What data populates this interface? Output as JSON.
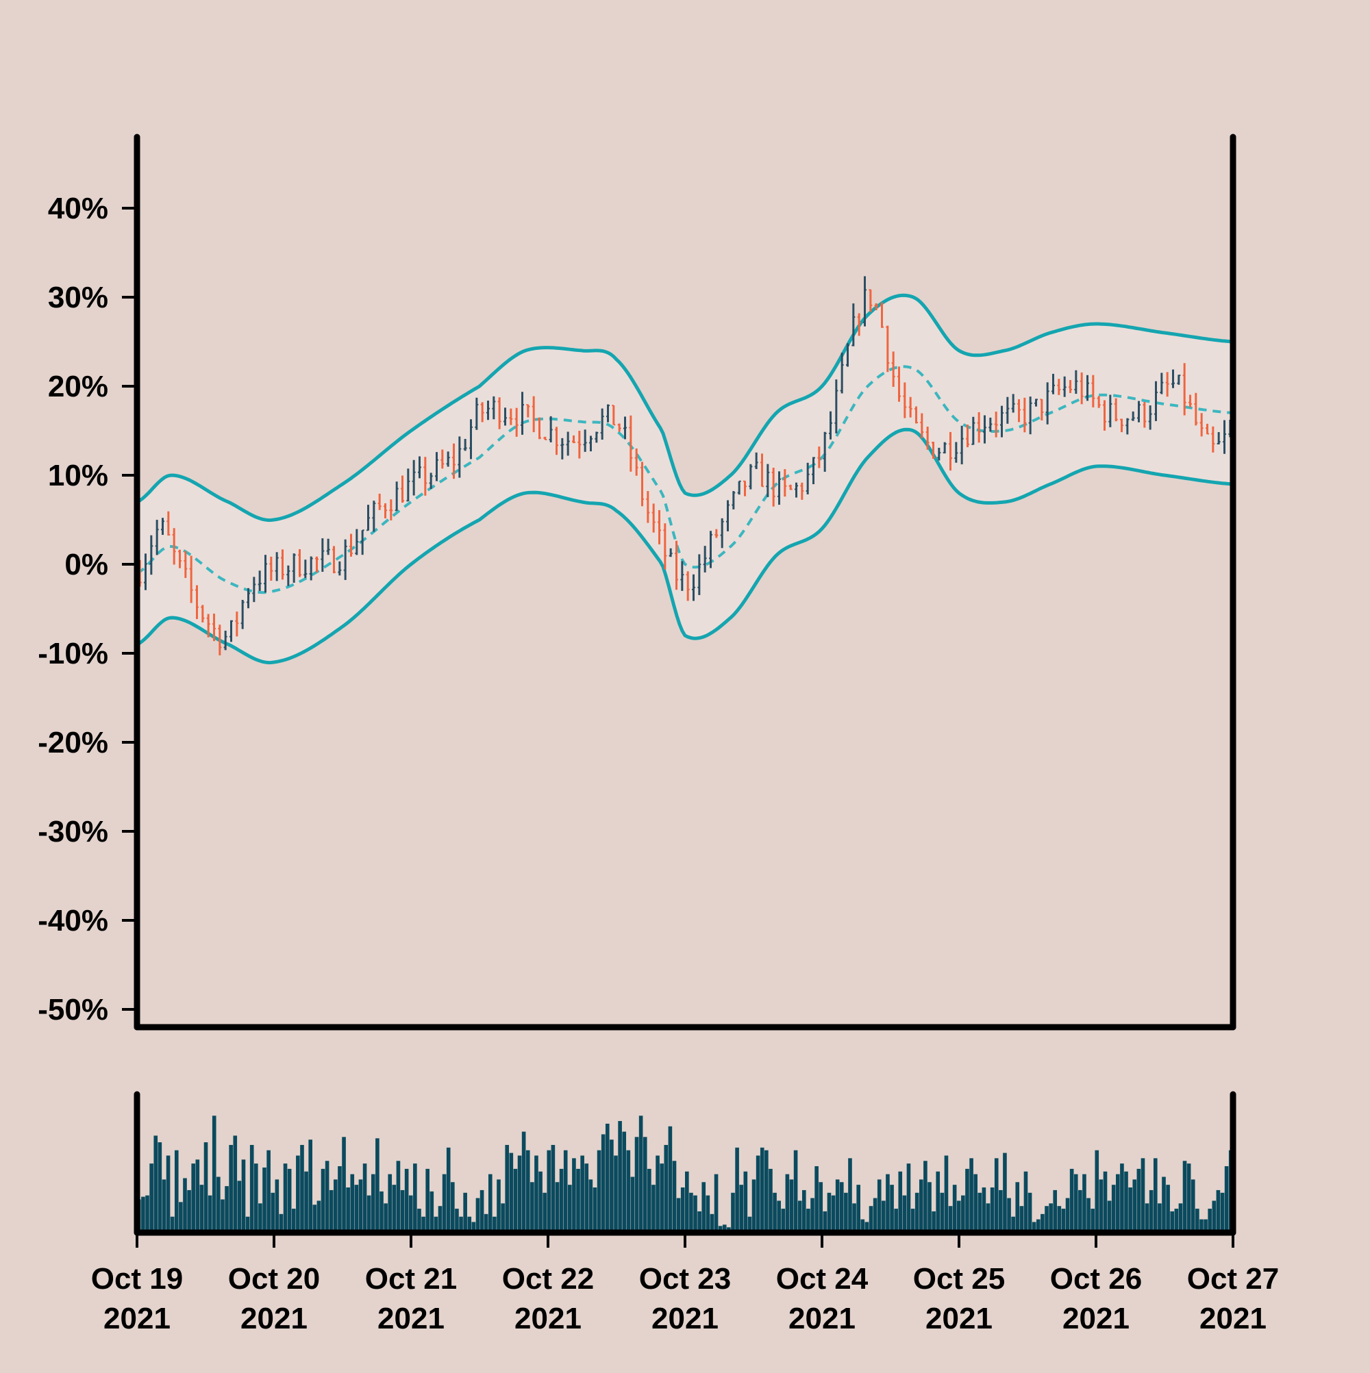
{
  "colors": {
    "background": "#e3d3cc",
    "band_fill": "#eadeda",
    "band_line": "#14a5b0",
    "mid_line": "#3bb6bf",
    "up_bar": "#2b4e63",
    "down_bar": "#ee6540",
    "volume_bar": "#0b4a5e",
    "axis": "#000000"
  },
  "chart_data": [
    {
      "type": "ohlc",
      "panel": "price",
      "ylim": [
        -52,
        48
      ],
      "y_ticks": [
        40,
        30,
        20,
        10,
        0,
        -10,
        -20,
        -30,
        -40,
        -50
      ],
      "y_tick_labels": [
        "40%",
        "30%",
        "20%",
        "10%",
        "0%",
        "-10%",
        "-20%",
        "-30%",
        "-40%",
        "-50%"
      ],
      "x_range": [
        "2021-10-19",
        "2021-10-27"
      ],
      "bars_per_day": 24,
      "close_path_anchors": [
        [
          "2021-10-19T00:00",
          -1
        ],
        [
          "2021-10-19T04:00",
          4
        ],
        [
          "2021-10-19T07:00",
          0
        ],
        [
          "2021-10-19T12:00",
          -6
        ],
        [
          "2021-10-19T16:00",
          -8
        ],
        [
          "2021-10-19T20:00",
          -2
        ],
        [
          "2021-10-20T04:00",
          0
        ],
        [
          "2021-10-20T12:00",
          1
        ],
        [
          "2021-10-20T18:00",
          6
        ],
        [
          "2021-10-21T00:00",
          9
        ],
        [
          "2021-10-21T08:00",
          12
        ],
        [
          "2021-10-21T12:00",
          17
        ],
        [
          "2021-10-21T18:00",
          17
        ],
        [
          "2021-10-22T04:00",
          14
        ],
        [
          "2021-10-22T12:00",
          16
        ],
        [
          "2021-10-22T18:00",
          5
        ],
        [
          "2021-10-23T00:00",
          -2
        ],
        [
          "2021-10-23T06:00",
          4
        ],
        [
          "2021-10-23T12:00",
          10
        ],
        [
          "2021-10-23T18:00",
          8
        ],
        [
          "2021-10-24T00:00",
          13
        ],
        [
          "2021-10-24T08:00",
          30
        ],
        [
          "2021-10-24T14:00",
          18
        ],
        [
          "2021-10-24T20:00",
          13
        ],
        [
          "2021-10-25T04:00",
          16
        ],
        [
          "2021-10-25T12:00",
          17
        ],
        [
          "2021-10-25T20:00",
          20
        ],
        [
          "2021-10-26T02:00",
          17
        ],
        [
          "2021-10-26T08:00",
          17
        ],
        [
          "2021-10-26T14:00",
          20
        ],
        [
          "2021-10-26T20:00",
          13
        ],
        [
          "2021-10-27T00:00",
          15
        ]
      ],
      "upper_band": [
        [
          "2021-10-19T00:00",
          7
        ],
        [
          "2021-10-19T06:00",
          10
        ],
        [
          "2021-10-19T16:00",
          7
        ],
        [
          "2021-10-20T00:00",
          5
        ],
        [
          "2021-10-20T12:00",
          9
        ],
        [
          "2021-10-21T00:00",
          15
        ],
        [
          "2021-10-21T12:00",
          20
        ],
        [
          "2021-10-21T20:00",
          24
        ],
        [
          "2021-10-22T06:00",
          24
        ],
        [
          "2021-10-22T12:00",
          23
        ],
        [
          "2021-10-22T20:00",
          15
        ],
        [
          "2021-10-23T00:00",
          8
        ],
        [
          "2021-10-23T08:00",
          10
        ],
        [
          "2021-10-23T16:00",
          17
        ],
        [
          "2021-10-24T00:00",
          20
        ],
        [
          "2021-10-24T08:00",
          28
        ],
        [
          "2021-10-24T16:00",
          30
        ],
        [
          "2021-10-25T00:00",
          24
        ],
        [
          "2021-10-25T08:00",
          24
        ],
        [
          "2021-10-25T16:00",
          26
        ],
        [
          "2021-10-26T00:00",
          27
        ],
        [
          "2021-10-26T12:00",
          26
        ],
        [
          "2021-10-27T00:00",
          25
        ]
      ],
      "middle_band": [
        [
          "2021-10-19T00:00",
          -1
        ],
        [
          "2021-10-19T06:00",
          2
        ],
        [
          "2021-10-19T16:00",
          -2
        ],
        [
          "2021-10-20T00:00",
          -3
        ],
        [
          "2021-10-20T12:00",
          1
        ],
        [
          "2021-10-21T00:00",
          7
        ],
        [
          "2021-10-21T12:00",
          12
        ],
        [
          "2021-10-21T20:00",
          16
        ],
        [
          "2021-10-22T06:00",
          16
        ],
        [
          "2021-10-22T12:00",
          15
        ],
        [
          "2021-10-22T20:00",
          8
        ],
        [
          "2021-10-23T00:00",
          0
        ],
        [
          "2021-10-23T08:00",
          2
        ],
        [
          "2021-10-23T16:00",
          9
        ],
        [
          "2021-10-24T00:00",
          12
        ],
        [
          "2021-10-24T08:00",
          20
        ],
        [
          "2021-10-24T16:00",
          22
        ],
        [
          "2021-10-25T00:00",
          16
        ],
        [
          "2021-10-25T08:00",
          15
        ],
        [
          "2021-10-25T16:00",
          17
        ],
        [
          "2021-10-26T00:00",
          19
        ],
        [
          "2021-10-26T12:00",
          18
        ],
        [
          "2021-10-27T00:00",
          17
        ]
      ],
      "lower_band": [
        [
          "2021-10-19T00:00",
          -9
        ],
        [
          "2021-10-19T06:00",
          -6
        ],
        [
          "2021-10-19T16:00",
          -9
        ],
        [
          "2021-10-20T00:00",
          -11
        ],
        [
          "2021-10-20T12:00",
          -7
        ],
        [
          "2021-10-21T00:00",
          0
        ],
        [
          "2021-10-21T12:00",
          5
        ],
        [
          "2021-10-21T20:00",
          8
        ],
        [
          "2021-10-22T06:00",
          7
        ],
        [
          "2021-10-22T12:00",
          6
        ],
        [
          "2021-10-22T20:00",
          0
        ],
        [
          "2021-10-23T00:00",
          -8
        ],
        [
          "2021-10-23T08:00",
          -6
        ],
        [
          "2021-10-23T16:00",
          1
        ],
        [
          "2021-10-24T00:00",
          4
        ],
        [
          "2021-10-24T08:00",
          12
        ],
        [
          "2021-10-24T16:00",
          15
        ],
        [
          "2021-10-25T00:00",
          8
        ],
        [
          "2021-10-25T08:00",
          7
        ],
        [
          "2021-10-25T16:00",
          9
        ],
        [
          "2021-10-26T00:00",
          11
        ],
        [
          "2021-10-26T12:00",
          10
        ],
        [
          "2021-10-27T00:00",
          9
        ]
      ]
    },
    {
      "type": "bar",
      "panel": "volume",
      "ylim": [
        0,
        1
      ],
      "relative_values": [
        0.25,
        0.27,
        0.28,
        0.52,
        0.73,
        0.68,
        0.4,
        0.58,
        0.12,
        0.62,
        0.23,
        0.41,
        0.32,
        0.52,
        0.55,
        0.36,
        0.68,
        0.28,
        0.88,
        0.42,
        0.25,
        0.35,
        0.66,
        0.73,
        0.39,
        0.55,
        0.12,
        0.66,
        0.52,
        0.22,
        0.49,
        0.62,
        0.3,
        0.4,
        0.14,
        0.52,
        0.48,
        0.18,
        0.58,
        0.66,
        0.46,
        0.7,
        0.21,
        0.24,
        0.48,
        0.54,
        0.32,
        0.4,
        0.5,
        0.72,
        0.34,
        0.44,
        0.36,
        0.4,
        0.52,
        0.28,
        0.44,
        0.71,
        0.31,
        0.22,
        0.44,
        0.36,
        0.54,
        0.32,
        0.48,
        0.28,
        0.52,
        0.18,
        0.12,
        0.48,
        0.31,
        0.12,
        0.2,
        0.44,
        0.64,
        0.38,
        0.18,
        0.12,
        0.3,
        0.12,
        0.08,
        0.26,
        0.32,
        0.14,
        0.44,
        0.12,
        0.4,
        0.22,
        0.66,
        0.6,
        0.48,
        0.58,
        0.76,
        0.62,
        0.38,
        0.58,
        0.46,
        0.3,
        0.62,
        0.66,
        0.38,
        0.48,
        0.62,
        0.36,
        0.56,
        0.48,
        0.58,
        0.52,
        0.4,
        0.34,
        0.62,
        0.74,
        0.82,
        0.7,
        0.58,
        0.84,
        0.76,
        0.62,
        0.42,
        0.72,
        0.88,
        0.72,
        0.48,
        0.36,
        0.58,
        0.52,
        0.66,
        0.8,
        0.54,
        0.26,
        0.34,
        0.46,
        0.3,
        0.28,
        0.16,
        0.38,
        0.28,
        0.14,
        0.44,
        0.05,
        0.06,
        0.04,
        0.3,
        0.64,
        0.36,
        0.46,
        0.12,
        0.4,
        0.58,
        0.64,
        0.62,
        0.48,
        0.3,
        0.24,
        0.18,
        0.44,
        0.4,
        0.62,
        0.24,
        0.32,
        0.18,
        0.26,
        0.5,
        0.38,
        0.16,
        0.3,
        0.28,
        0.4,
        0.38,
        0.3,
        0.56,
        0.22,
        0.36,
        0.1,
        0.08,
        0.2,
        0.26,
        0.4,
        0.24,
        0.44,
        0.36,
        0.18,
        0.46,
        0.28,
        0.52,
        0.18,
        0.3,
        0.4,
        0.54,
        0.38,
        0.16,
        0.46,
        0.3,
        0.58,
        0.2,
        0.36,
        0.24,
        0.28,
        0.48,
        0.56,
        0.44,
        0.3,
        0.34,
        0.22,
        0.34,
        0.56,
        0.32,
        0.6,
        0.26,
        0.12,
        0.38,
        0.2,
        0.46,
        0.3,
        0.08,
        0.1,
        0.14,
        0.2,
        0.22,
        0.32,
        0.2,
        0.18,
        0.26,
        0.48,
        0.44,
        0.32,
        0.44,
        0.26,
        0.18,
        0.62,
        0.4,
        0.46,
        0.24,
        0.36,
        0.44,
        0.52,
        0.46,
        0.34,
        0.4,
        0.48,
        0.56,
        0.22,
        0.32,
        0.56,
        0.22,
        0.42,
        0.36,
        0.16,
        0.18,
        0.22,
        0.54,
        0.52,
        0.4,
        0.18,
        0.1,
        0.1,
        0.18,
        0.24,
        0.32,
        0.3,
        0.5,
        0.62
      ]
    }
  ],
  "x_axis": {
    "ticks": [
      "2021-10-19",
      "2021-10-20",
      "2021-10-21",
      "2021-10-22",
      "2021-10-23",
      "2021-10-24",
      "2021-10-25",
      "2021-10-26",
      "2021-10-27"
    ],
    "labels_top": [
      "Oct 19",
      "Oct 20",
      "Oct 21",
      "Oct 22",
      "Oct 23",
      "Oct 24",
      "Oct 25",
      "Oct 26",
      "Oct 27"
    ],
    "labels_bottom": [
      "2021",
      "2021",
      "2021",
      "2021",
      "2021",
      "2021",
      "2021",
      "2021",
      "2021"
    ]
  }
}
